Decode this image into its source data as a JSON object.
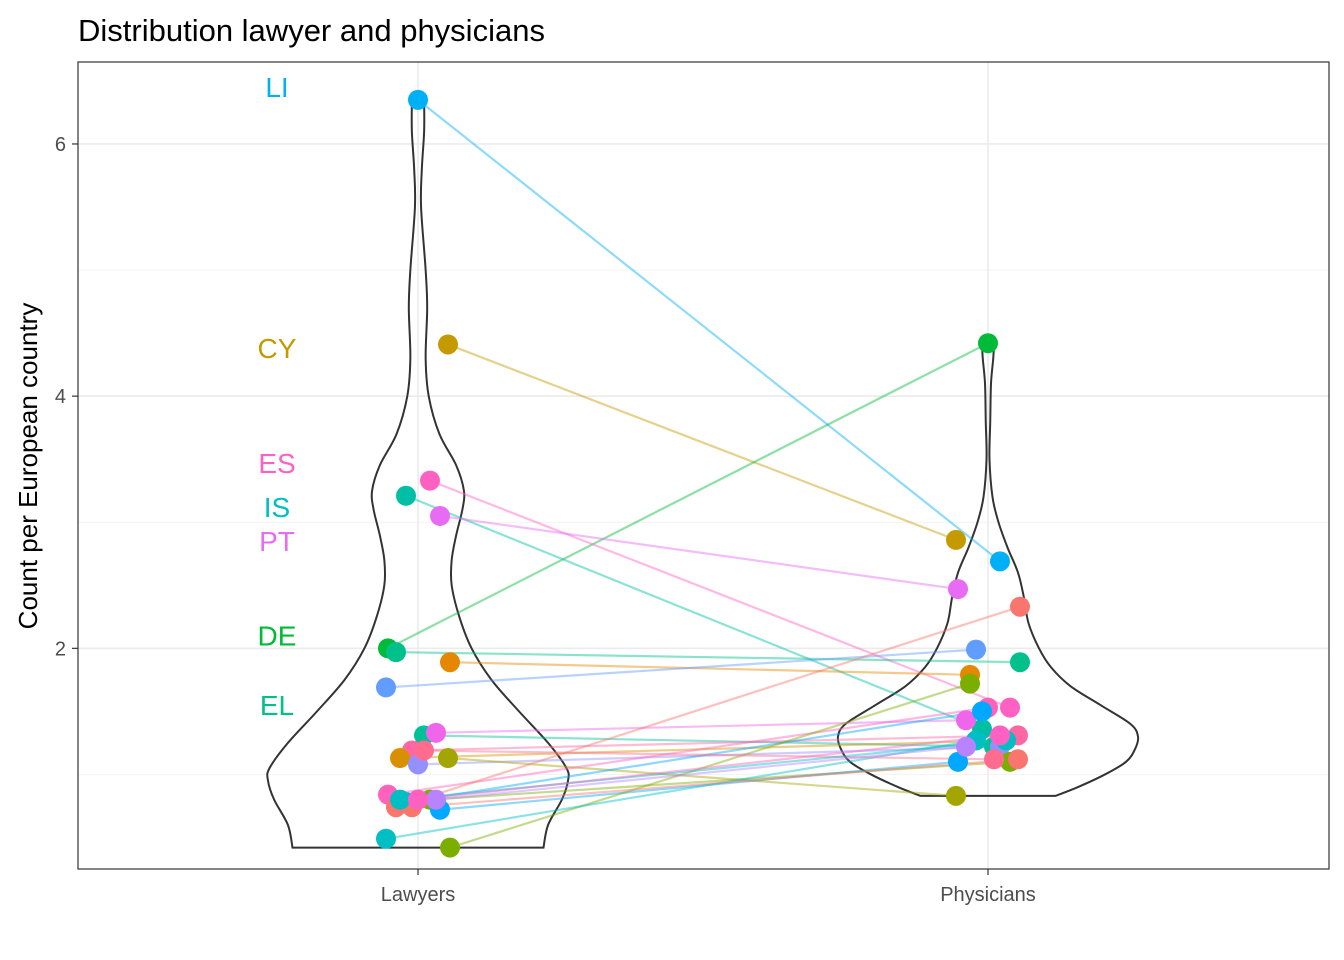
{
  "chart_data": {
    "type": "violin",
    "title": "Distribution lawyer and physicians",
    "xlabel": "",
    "ylabel": "Count per European country",
    "categories": [
      "Lawyers",
      "Physicians"
    ],
    "ylim": [
      0.25,
      6.65
    ],
    "yticks": [
      2,
      4,
      6
    ],
    "grid": true,
    "legend": "none",
    "labels": [
      {
        "text": "LI",
        "y": 6.45,
        "color": "#00B0F6"
      },
      {
        "text": "CY",
        "y": 4.38,
        "color": "#C49A00"
      },
      {
        "text": "ES",
        "y": 3.47,
        "color": "#FF61C3"
      },
      {
        "text": "IS",
        "y": 3.12,
        "color": "#00BFC4"
      },
      {
        "text": "PT",
        "y": 2.85,
        "color": "#E76BF3"
      },
      {
        "text": "DE",
        "y": 2.1,
        "color": "#00BA38"
      },
      {
        "text": "EL",
        "y": 1.55,
        "color": "#00C08B"
      }
    ],
    "countries": [
      {
        "name": "LI",
        "color": "#00B0F6",
        "lawyers": 6.35,
        "physicians": 2.69
      },
      {
        "name": "CY",
        "color": "#C49A00",
        "lawyers": 4.41,
        "physicians": 2.86
      },
      {
        "name": "DE",
        "color": "#00BA38",
        "lawyers": 2.0,
        "physicians": 4.42
      },
      {
        "name": "ES",
        "color": "#FF61C3",
        "lawyers": 3.33,
        "physicians": 1.53
      },
      {
        "name": "IS",
        "color": "#00BFA5",
        "lawyers": 3.21,
        "physicians": 1.36
      },
      {
        "name": "PT",
        "color": "#E76BF3",
        "lawyers": 3.05,
        "physicians": 2.47
      },
      {
        "name": "EL",
        "color": "#00C08B",
        "lawyers": 1.97,
        "physicians": 1.89
      },
      {
        "name": "c8",
        "color": "#E58700",
        "lawyers": 1.89,
        "physicians": 1.79
      },
      {
        "name": "c9",
        "color": "#619CFF",
        "lawyers": 1.69,
        "physicians": 1.99
      },
      {
        "name": "c10",
        "color": "#00C19A",
        "lawyers": 1.31,
        "physicians": 1.22
      },
      {
        "name": "c11",
        "color": "#FF67A4",
        "lawyers": 1.19,
        "physicians": 1.31
      },
      {
        "name": "c12",
        "color": "#F066EA",
        "lawyers": 1.33,
        "physicians": 1.43
      },
      {
        "name": "c13",
        "color": "#D89000",
        "lawyers": 1.13,
        "physicians": 1.27
      },
      {
        "name": "c14",
        "color": "#9590FF",
        "lawyers": 1.08,
        "physicians": 1.22
      },
      {
        "name": "c15",
        "color": "#A3A500",
        "lawyers": 1.13,
        "physicians": 0.83
      },
      {
        "name": "c16",
        "color": "#FF62BC",
        "lawyers": 0.84,
        "physicians": 1.53
      },
      {
        "name": "c17",
        "color": "#7CAE00",
        "lawyers": 0.8,
        "physicians": 1.1
      },
      {
        "name": "c18",
        "color": "#00A9FF",
        "lawyers": 0.78,
        "physicians": 1.5
      },
      {
        "name": "c19",
        "color": "#00A9FF",
        "lawyers": 0.72,
        "physicians": 1.1
      },
      {
        "name": "c20",
        "color": "#F8766D",
        "lawyers": 0.74,
        "physicians": 2.33
      },
      {
        "name": "c21",
        "color": "#7CAE00",
        "lawyers": 0.42,
        "physicians": 1.72
      },
      {
        "name": "c22",
        "color": "#00BFC4",
        "lawyers": 0.49,
        "physicians": 1.27
      },
      {
        "name": "c23",
        "color": "#FF6C90",
        "lawyers": 1.19,
        "physicians": 1.12
      },
      {
        "name": "c24",
        "color": "#F8766D",
        "lawyers": 0.74,
        "physicians": 1.12
      },
      {
        "name": "c25",
        "color": "#B983FF",
        "lawyers": 0.8,
        "physicians": 1.22
      },
      {
        "name": "c26",
        "color": "#00BFC4",
        "lawyers": 0.8,
        "physicians": 1.27
      },
      {
        "name": "c27",
        "color": "#FF61C3",
        "lawyers": 0.8,
        "physicians": 1.31
      }
    ],
    "violins": {
      "Lawyers": [
        [
          0.42,
          0.82
        ],
        [
          0.6,
          0.85
        ],
        [
          0.8,
          0.94
        ],
        [
          0.95,
          0.98
        ],
        [
          1.05,
          0.97
        ],
        [
          1.25,
          0.85
        ],
        [
          1.5,
          0.66
        ],
        [
          1.75,
          0.48
        ],
        [
          2.0,
          0.35
        ],
        [
          2.25,
          0.27
        ],
        [
          2.5,
          0.22
        ],
        [
          2.7,
          0.22
        ],
        [
          2.9,
          0.25
        ],
        [
          3.1,
          0.29
        ],
        [
          3.25,
          0.3
        ],
        [
          3.45,
          0.25
        ],
        [
          3.7,
          0.14
        ],
        [
          4.0,
          0.07
        ],
        [
          4.3,
          0.05
        ],
        [
          4.7,
          0.06
        ],
        [
          5.0,
          0.05
        ],
        [
          5.5,
          0.02
        ],
        [
          5.8,
          0.025
        ],
        [
          6.1,
          0.04
        ],
        [
          6.35,
          0.04
        ]
      ],
      "Physicians": [
        [
          0.83,
          0.45
        ],
        [
          0.9,
          0.6
        ],
        [
          1.0,
          0.78
        ],
        [
          1.1,
          0.92
        ],
        [
          1.2,
          0.98
        ],
        [
          1.3,
          1.0
        ],
        [
          1.4,
          0.95
        ],
        [
          1.55,
          0.75
        ],
        [
          1.7,
          0.55
        ],
        [
          1.85,
          0.42
        ],
        [
          2.0,
          0.34
        ],
        [
          2.2,
          0.27
        ],
        [
          2.4,
          0.24
        ],
        [
          2.6,
          0.2
        ],
        [
          2.8,
          0.13
        ],
        [
          3.0,
          0.07
        ],
        [
          3.2,
          0.03
        ],
        [
          3.5,
          0.01
        ],
        [
          3.8,
          0.015
        ],
        [
          4.1,
          0.02
        ],
        [
          4.3,
          0.035
        ],
        [
          4.42,
          0.04
        ]
      ]
    }
  }
}
